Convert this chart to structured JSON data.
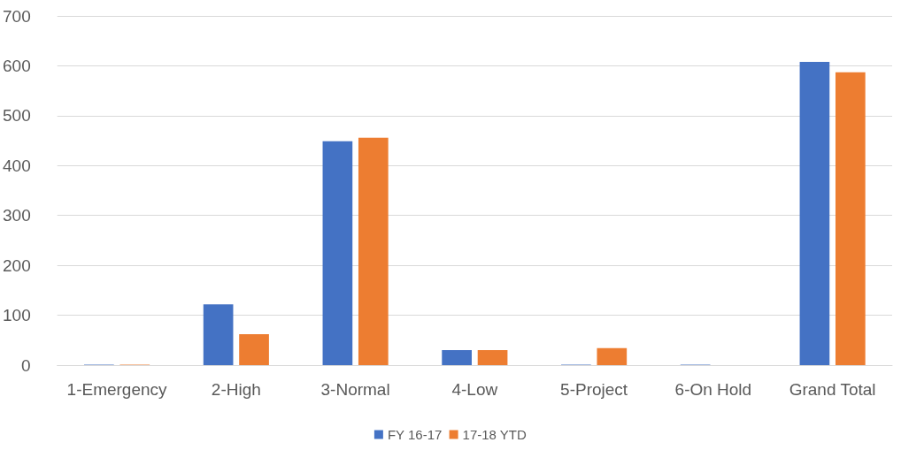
{
  "chart_data": {
    "type": "bar",
    "categories": [
      "1-Emergency",
      "2-High",
      "3-Normal",
      "4-Low",
      "5-Project",
      "6-On Hold",
      "Grand Total"
    ],
    "series": [
      {
        "name": "FY 16-17",
        "color": "#4472c4",
        "values": [
          1,
          122,
          449,
          30,
          1,
          1,
          608
        ]
      },
      {
        "name": "17-18 YTD",
        "color": "#ed7d31",
        "values": [
          1,
          62,
          456,
          30,
          34,
          0,
          587
        ]
      }
    ],
    "ylim": [
      0,
      700
    ],
    "yticks": [
      0,
      100,
      200,
      300,
      400,
      500,
      600,
      700
    ],
    "grid": "y",
    "legend": "bottom"
  }
}
